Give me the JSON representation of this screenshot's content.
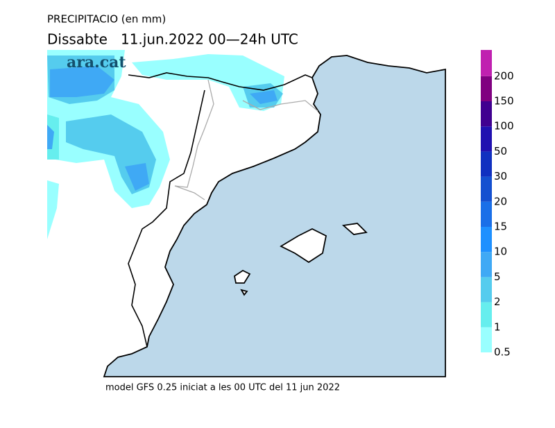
{
  "header": {
    "title": "PRECIPITACIO (en mm)",
    "subtitle": "Dissabte   11.jun.2022 00—24h UTC"
  },
  "logo": "ara.cat",
  "footer": "model GFS 0.25 iniciat a les 00 UTC del 11 jun 2022",
  "legend": {
    "levels": [
      {
        "value": 0.5,
        "color": "#99ffff"
      },
      {
        "value": 1,
        "color": "#66eeee"
      },
      {
        "value": 2,
        "color": "#55ccee"
      },
      {
        "value": 5,
        "color": "#3fa9f5"
      },
      {
        "value": 10,
        "color": "#1e90ff"
      },
      {
        "value": 15,
        "color": "#1a6fe8"
      },
      {
        "value": 20,
        "color": "#1450d0"
      },
      {
        "value": 30,
        "color": "#1030c0"
      },
      {
        "value": 50,
        "color": "#2010b0"
      },
      {
        "value": 100,
        "color": "#400090"
      },
      {
        "value": 150,
        "color": "#800080"
      },
      {
        "value": 200,
        "color": "#c020b0"
      }
    ]
  }
}
